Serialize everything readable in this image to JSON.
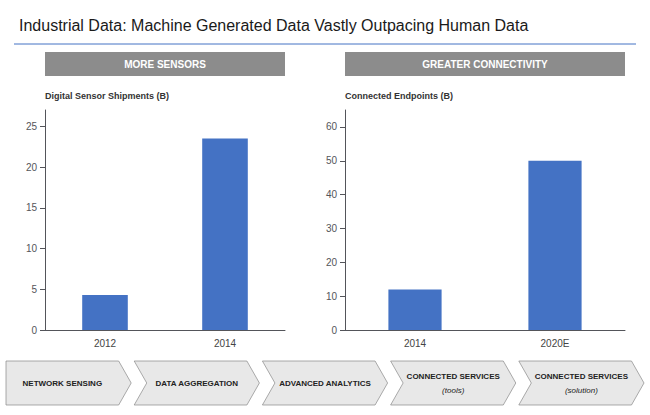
{
  "title": "Industrial Data: Machine Generated Data Vastly Outpacing Human Data",
  "chart_data": [
    {
      "type": "bar",
      "title": "MORE SENSORS",
      "ylabel": "Digital Sensor Shipments (B)",
      "categories": [
        "2012",
        "2014"
      ],
      "values": [
        4.3,
        23.5
      ],
      "color": "#4472C4",
      "ylim": [
        0,
        27
      ],
      "yticks": [
        0,
        5,
        10,
        15,
        20,
        25
      ],
      "grid": false
    },
    {
      "type": "bar",
      "title": "GREATER CONNECTIVITY",
      "ylabel": "Connected Endpoints (B)",
      "categories": [
        "2014",
        "2020E"
      ],
      "values": [
        12,
        50
      ],
      "color": "#4472C4",
      "ylim": [
        0,
        65
      ],
      "yticks": [
        0,
        10,
        20,
        30,
        40,
        50,
        60
      ],
      "grid": false
    }
  ],
  "annotations": [
    "NETWORK SENSING",
    "DATA AGGREGATION",
    "ADVANCED ANALYTICS",
    "CONNECTED SERVICES\n(tools)",
    "CONNECTED SERVICES\n(solution)"
  ]
}
